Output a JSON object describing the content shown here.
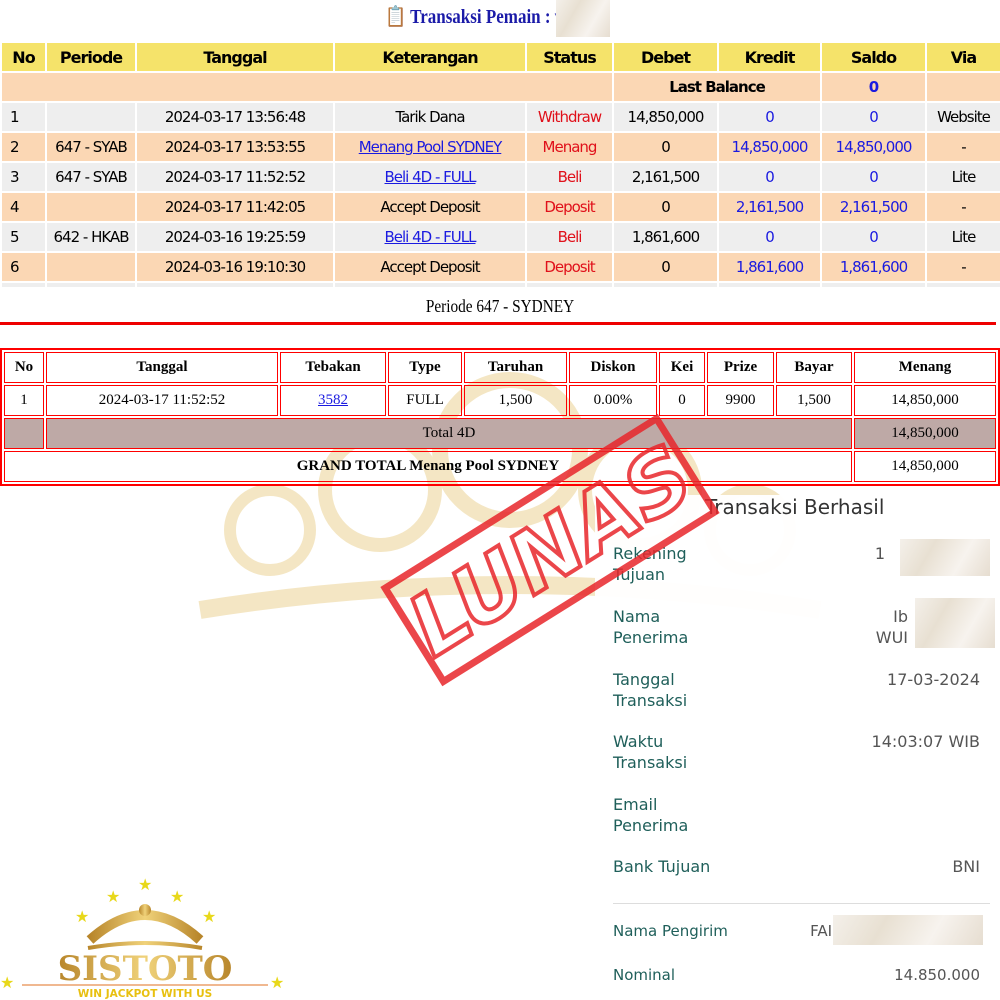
{
  "header": {
    "title": "Transaksi  Pemain : wi",
    "icon": "clipboard-icon"
  },
  "transactions": {
    "columns": [
      "No",
      "Periode",
      "Tanggal",
      "Keterangan",
      "Status",
      "Debet",
      "Kredit",
      "Saldo",
      "Via"
    ],
    "last_balance_label": "Last Balance",
    "last_balance_value": "0",
    "rows": [
      {
        "no": "1",
        "periode": "",
        "tanggal": "2024-03-17 13:56:48",
        "keterangan": "Tarik Dana",
        "link": false,
        "status": "Withdraw",
        "debet": "14,850,000",
        "kredit": "0",
        "saldo": "0",
        "via": "Website"
      },
      {
        "no": "2",
        "periode": "647 - SYAB",
        "tanggal": "2024-03-17 13:53:55",
        "keterangan": "Menang Pool SYDNEY",
        "link": true,
        "status": "Menang",
        "debet": "0",
        "kredit": "14,850,000",
        "saldo": "14,850,000",
        "via": "-"
      },
      {
        "no": "3",
        "periode": "647 - SYAB",
        "tanggal": "2024-03-17 11:52:52",
        "keterangan": "Beli 4D - FULL",
        "link": true,
        "status": "Beli",
        "debet": "2,161,500",
        "kredit": "0",
        "saldo": "0",
        "via": "Lite"
      },
      {
        "no": "4",
        "periode": "",
        "tanggal": "2024-03-17 11:42:05",
        "keterangan": "Accept Deposit",
        "link": false,
        "status": "Deposit",
        "debet": "0",
        "kredit": "2,161,500",
        "saldo": "2,161,500",
        "via": "-"
      },
      {
        "no": "5",
        "periode": "642 - HKAB",
        "tanggal": "2024-03-16 19:25:59",
        "keterangan": "Beli 4D - FULL",
        "link": true,
        "status": "Beli",
        "debet": "1,861,600",
        "kredit": "0",
        "saldo": "0",
        "via": "Lite"
      },
      {
        "no": "6",
        "periode": "",
        "tanggal": "2024-03-16 19:10:30",
        "keterangan": "Accept Deposit",
        "link": false,
        "status": "Deposit",
        "debet": "0",
        "kredit": "1,861,600",
        "saldo": "1,861,600",
        "via": "-"
      }
    ]
  },
  "periode": {
    "title": "Periode 647 - SYDNEY",
    "columns": [
      "No",
      "Tanggal",
      "Tebakan",
      "Type",
      "Taruhan",
      "Diskon",
      "Kei",
      "Prize",
      "Bayar",
      "Menang"
    ],
    "row": {
      "no": "1",
      "tanggal": "2024-03-17 11:52:52",
      "tebakan": "3582",
      "type": "FULL",
      "taruhan": "1,500",
      "diskon": "0.00%",
      "kei": "0",
      "prize": "9900",
      "bayar": "1,500",
      "menang": "14,850,000"
    },
    "total_label": "Total 4D",
    "total_value": "14,850,000",
    "grand_label": "GRAND TOTAL  Menang Pool SYDNEY",
    "grand_value": "14,850,000"
  },
  "stamp": {
    "text": "LUNAS",
    "color": "#e8262b"
  },
  "receipt": {
    "title": "Transaksi Berhasil",
    "rekening_label": "Rekening\nTujuan",
    "rekening_value": "1",
    "nama_label": "Nama\nPenerima",
    "nama_value": "Ib\nWUI",
    "tanggal_label": "Tanggal\nTransaksi",
    "tanggal_value": "17-03-2024",
    "waktu_label": "Waktu\nTransaksi",
    "waktu_value": "14:03:07 WIB",
    "email_label": "Email\nPenerima",
    "bank_label": "Bank Tujuan",
    "bank_value": "BNI",
    "pengirim_label": "Nama Pengirim",
    "pengirim_value": "FAI",
    "nominal_label": "Nominal",
    "nominal_value": "14.850.000"
  },
  "logo": {
    "name": "SISTOTO",
    "tagline": "WIN JACKPOT WITH US"
  },
  "colors": {
    "header_yellow": "#f5e36a",
    "row_peach": "#fbd7b4",
    "link_blue": "#1a1ae0",
    "status_red": "#e0101a",
    "table_red": "#ff0000"
  }
}
